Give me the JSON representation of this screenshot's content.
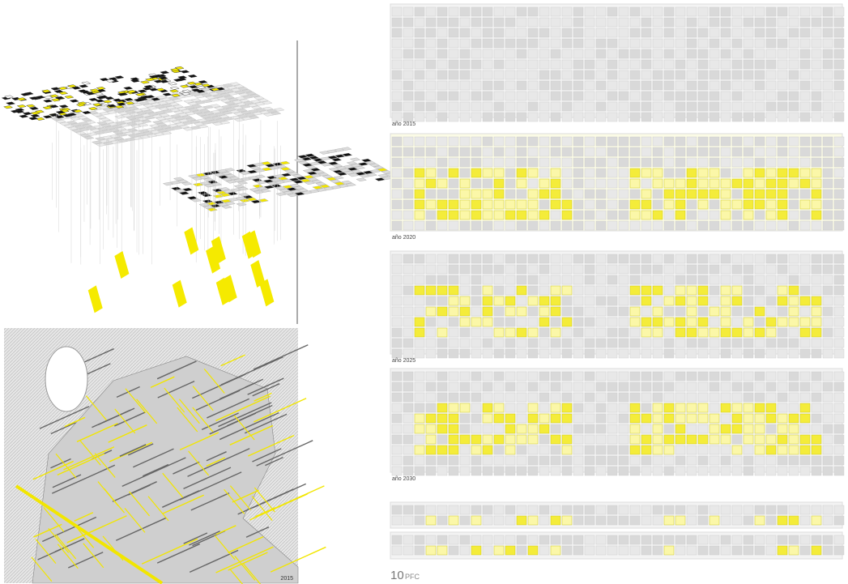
{
  "panels": {
    "map_year": "2015",
    "strips": [
      {
        "label": "año 2015"
      },
      {
        "label": "año 2020"
      },
      {
        "label": "año 2025"
      },
      {
        "label": "año 2030"
      }
    ],
    "footer": {
      "number": "10",
      "title": "PFC"
    }
  }
}
